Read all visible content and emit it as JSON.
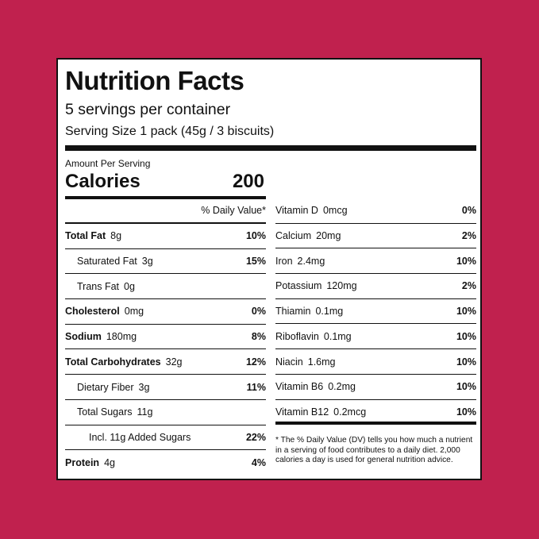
{
  "title": "Nutrition Facts",
  "servings": "5 servings per container",
  "serving_size": "Serving Size 1 pack (45g / 3 biscuits)",
  "amount_per_serving": "Amount Per Serving",
  "calories_label": "Calories",
  "calories_value": "200",
  "dv_header": "% Daily Value*",
  "colors": {
    "background": "#c0214e",
    "panel": "#ffffff",
    "text": "#111111"
  },
  "left": [
    {
      "name": "Total Fat",
      "amount": "8g",
      "dv": "10%",
      "bold": true,
      "indent": 0
    },
    {
      "name": "Saturated Fat",
      "amount": "3g",
      "dv": "15%",
      "bold": false,
      "indent": 1
    },
    {
      "name": "Trans Fat",
      "amount": "0g",
      "dv": "",
      "bold": false,
      "indent": 1
    },
    {
      "name": "Cholesterol",
      "amount": "0mg",
      "dv": "0%",
      "bold": true,
      "indent": 0
    },
    {
      "name": "Sodium",
      "amount": "180mg",
      "dv": "8%",
      "bold": true,
      "indent": 0
    },
    {
      "name": "Total Carbohydrates",
      "amount": "32g",
      "dv": "12%",
      "bold": true,
      "indent": 0
    },
    {
      "name": "Dietary Fiber",
      "amount": "3g",
      "dv": "11%",
      "bold": false,
      "indent": 1
    },
    {
      "name": "Total Sugars",
      "amount": "11g",
      "dv": "",
      "bold": false,
      "indent": 1
    },
    {
      "name": "Incl. 11g Added Sugars",
      "amount": "",
      "dv": "22%",
      "bold": false,
      "indent": 2
    },
    {
      "name": "Protein",
      "amount": "4g",
      "dv": "4%",
      "bold": true,
      "indent": 0
    }
  ],
  "right": [
    {
      "name": "Vitamin D",
      "amount": "0mcg",
      "dv": "0%"
    },
    {
      "name": "Calcium",
      "amount": "20mg",
      "dv": "2%"
    },
    {
      "name": "Iron",
      "amount": "2.4mg",
      "dv": "10%"
    },
    {
      "name": "Potassium",
      "amount": "120mg",
      "dv": "2%"
    },
    {
      "name": "Thiamin",
      "amount": "0.1mg",
      "dv": "10%"
    },
    {
      "name": "Riboflavin",
      "amount": "0.1mg",
      "dv": "10%"
    },
    {
      "name": "Niacin",
      "amount": "1.6mg",
      "dv": "10%"
    },
    {
      "name": "Vitamin B6",
      "amount": "0.2mg",
      "dv": "10%"
    },
    {
      "name": "Vitamin B12",
      "amount": "0.2mcg",
      "dv": "10%"
    }
  ],
  "footnote": "* The % Daily Value (DV) tells you how much a nutrient in a serving of food contributes to a daily diet. 2,000 calories a day is used for general nutrition advice."
}
